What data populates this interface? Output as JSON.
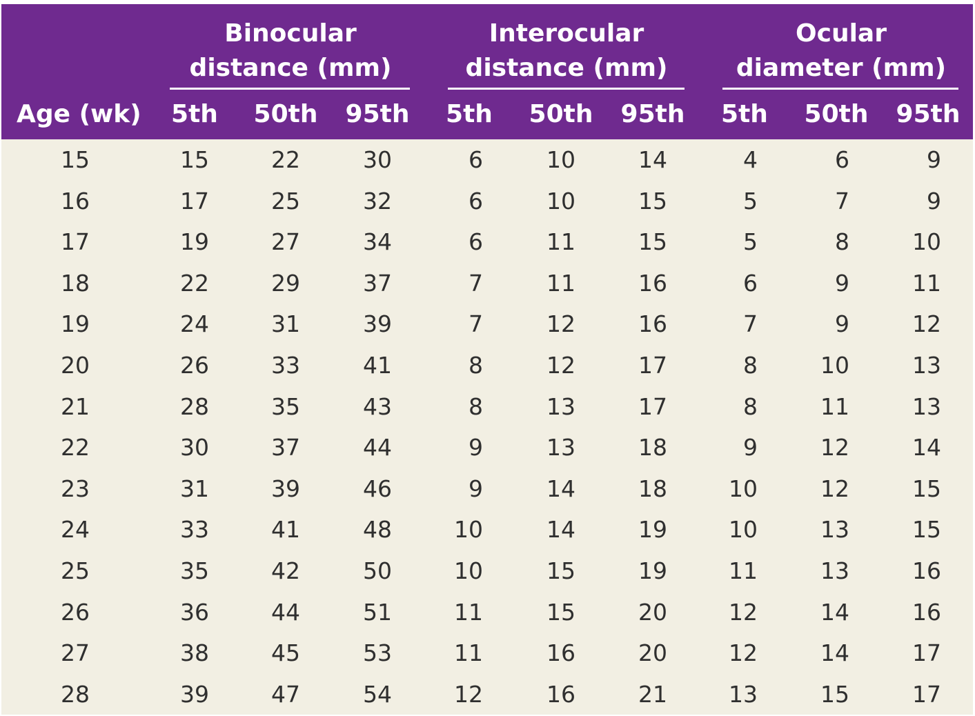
{
  "table": {
    "groups": [
      {
        "label": "Binocular\ndistance (mm)"
      },
      {
        "label": "Interocular\ndistance (mm)"
      },
      {
        "label": "Ocular\ndiameter (mm)"
      }
    ],
    "columns": [
      "Age (wk)",
      "5th",
      "50th",
      "95th",
      "5th",
      "50th",
      "95th",
      "5th",
      "50th",
      "95th"
    ],
    "rows": [
      [
        "15",
        "15",
        "22",
        "30",
        "6",
        "10",
        "14",
        "4",
        "6",
        "9"
      ],
      [
        "16",
        "17",
        "25",
        "32",
        "6",
        "10",
        "15",
        "5",
        "7",
        "9"
      ],
      [
        "17",
        "19",
        "27",
        "34",
        "6",
        "11",
        "15",
        "5",
        "8",
        "10"
      ],
      [
        "18",
        "22",
        "29",
        "37",
        "7",
        "11",
        "16",
        "6",
        "9",
        "11"
      ],
      [
        "19",
        "24",
        "31",
        "39",
        "7",
        "12",
        "16",
        "7",
        "9",
        "12"
      ],
      [
        "20",
        "26",
        "33",
        "41",
        "8",
        "12",
        "17",
        "8",
        "10",
        "13"
      ],
      [
        "21",
        "28",
        "35",
        "43",
        "8",
        "13",
        "17",
        "8",
        "11",
        "13"
      ],
      [
        "22",
        "30",
        "37",
        "44",
        "9",
        "13",
        "18",
        "9",
        "12",
        "14"
      ],
      [
        "23",
        "31",
        "39",
        "46",
        "9",
        "14",
        "18",
        "10",
        "12",
        "15"
      ],
      [
        "24",
        "33",
        "41",
        "48",
        "10",
        "14",
        "19",
        "10",
        "13",
        "15"
      ],
      [
        "25",
        "35",
        "42",
        "50",
        "10",
        "15",
        "19",
        "11",
        "13",
        "16"
      ],
      [
        "26",
        "36",
        "44",
        "51",
        "11",
        "15",
        "20",
        "12",
        "14",
        "16"
      ],
      [
        "27",
        "38",
        "45",
        "53",
        "11",
        "16",
        "20",
        "12",
        "14",
        "17"
      ],
      [
        "28",
        "39",
        "47",
        "54",
        "12",
        "16",
        "21",
        "13",
        "15",
        "17"
      ]
    ]
  },
  "colors": {
    "header_bg": "#6f2a8f",
    "body_bg": "#f2efe3",
    "text": "#2f2f2f",
    "header_text": "#ffffff"
  }
}
